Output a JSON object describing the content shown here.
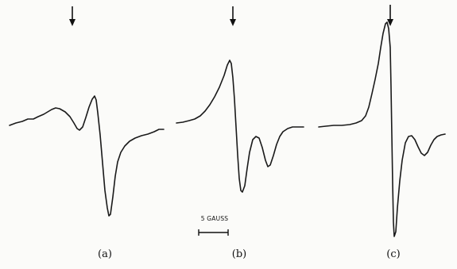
{
  "figure": {
    "panels": [
      {
        "label": "(a)"
      },
      {
        "label": "(b)"
      },
      {
        "label": "(c)"
      }
    ],
    "scale": {
      "label": "5 GAUSS"
    }
  }
}
